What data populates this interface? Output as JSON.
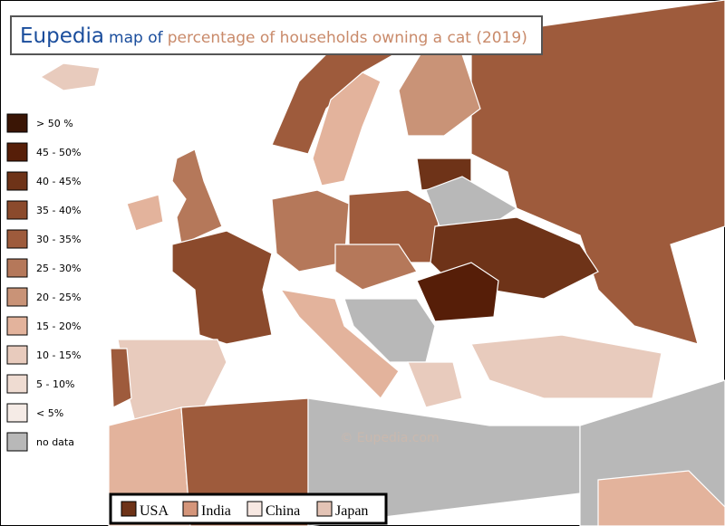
{
  "header": {
    "brand": "Eupedia",
    "title_mid": "map of",
    "title_rest": "percentage of households owning a cat (2019)"
  },
  "legend": {
    "items": [
      {
        "label": "> 50 %",
        "color": "#3a1505"
      },
      {
        "label": "45 - 50%",
        "color": "#561e08"
      },
      {
        "label": "40 - 45%",
        "color": "#6e3318"
      },
      {
        "label": "35 - 40%",
        "color": "#8b4a2c"
      },
      {
        "label": "30 - 35%",
        "color": "#9e5b3c"
      },
      {
        "label": "25 - 30%",
        "color": "#b5785a"
      },
      {
        "label": "20 - 25%",
        "color": "#c99377"
      },
      {
        "label": "15 - 20%",
        "color": "#e3b39c"
      },
      {
        "label": "10 - 15%",
        "color": "#e8cbbd"
      },
      {
        "label": "5 - 10%",
        "color": "#efdcd2"
      },
      {
        "label": "< 5%",
        "color": "#f5ebe6"
      },
      {
        "label": "no data",
        "color": "#b8b8b8"
      }
    ]
  },
  "comparison": {
    "items": [
      {
        "label": "USA",
        "color": "#6e3318"
      },
      {
        "label": "India",
        "color": "#d4957a"
      },
      {
        "label": "China",
        "color": "#f7e8e2"
      },
      {
        "label": "Japan",
        "color": "#e3c3b5"
      }
    ]
  },
  "watermark": "©  Eupedia.com"
}
